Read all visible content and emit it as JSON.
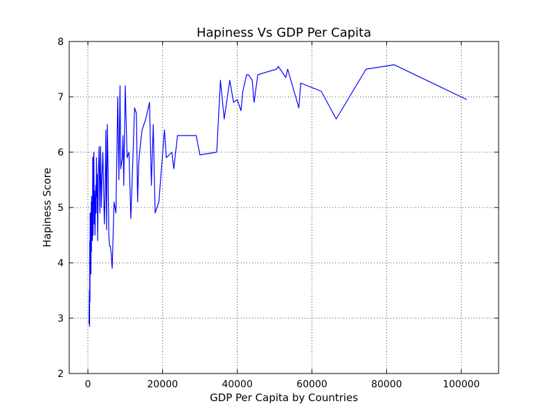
{
  "chart_data": {
    "type": "line",
    "title": "Hapiness Vs GDP Per Capita",
    "xlabel": "GDP Per Capita by Countries",
    "ylabel": "Hapiness Score",
    "xlim": [
      -5000,
      110000
    ],
    "ylim": [
      2,
      8
    ],
    "x_ticks": [
      0,
      20000,
      40000,
      60000,
      80000,
      100000
    ],
    "y_ticks": [
      2,
      3,
      4,
      5,
      6,
      7,
      8
    ],
    "grid": true,
    "grid_style": "dotted",
    "legend": "none",
    "series": [
      {
        "color": "#0000ff",
        "x": [
          300,
          400,
          450,
          500,
          550,
          600,
          650,
          700,
          750,
          800,
          850,
          900,
          950,
          1000,
          1100,
          1200,
          1300,
          1400,
          1500,
          1600,
          1700,
          1800,
          1900,
          2000,
          2100,
          2200,
          2300,
          2400,
          2500,
          2600,
          2800,
          3000,
          3200,
          3400,
          3600,
          3800,
          4000,
          4200,
          4400,
          4600,
          4800,
          5000,
          5200,
          5400,
          5600,
          5800,
          6000,
          6200,
          6500,
          7000,
          7500,
          8000,
          8300,
          8600,
          8800,
          9000,
          9200,
          9400,
          9600,
          10000,
          10500,
          11000,
          11500,
          12500,
          13000,
          13300,
          13600,
          14000,
          14500,
          15500,
          16500,
          17000,
          17500,
          18000,
          19000,
          20500,
          21000,
          22500,
          23000,
          24000,
          26000,
          28000,
          29000,
          30000,
          34500,
          35500,
          36500,
          38000,
          39000,
          40000,
          41000,
          41500,
          42500,
          43000,
          44000,
          44500,
          45500,
          50500,
          51000,
          53000,
          53500,
          56500,
          57000,
          62500,
          66500,
          74500,
          82000,
          101500
        ],
        "y": [
          2.9,
          3.5,
          2.85,
          4.4,
          3.3,
          4.9,
          3.8,
          4.3,
          4.9,
          3.8,
          4.6,
          5.1,
          4.2,
          5.2,
          4.8,
          4.4,
          5.9,
          4.5,
          5.9,
          6.0,
          4.7,
          5.3,
          4.5,
          5.0,
          5.4,
          4.9,
          5.9,
          5.2,
          5.6,
          4.4,
          5.6,
          6.1,
          4.9,
          6.1,
          5.0,
          5.6,
          6.0,
          5.4,
          4.7,
          5.2,
          6.4,
          4.6,
          6.5,
          5.7,
          4.5,
          4.3,
          4.3,
          4.2,
          3.9,
          5.1,
          4.9,
          7.0,
          5.5,
          7.2,
          5.7,
          5.8,
          5.9,
          6.3,
          5.4,
          7.2,
          5.9,
          6.0,
          4.8,
          6.8,
          6.7,
          5.1,
          5.8,
          6.1,
          6.4,
          6.6,
          6.9,
          5.4,
          6.5,
          4.9,
          5.1,
          6.4,
          5.9,
          6.0,
          5.7,
          6.3,
          6.3,
          6.3,
          6.3,
          5.95,
          6.0,
          7.3,
          6.6,
          7.3,
          6.9,
          6.95,
          6.75,
          7.1,
          7.4,
          7.4,
          7.3,
          6.9,
          7.4,
          7.5,
          7.55,
          7.35,
          7.5,
          6.8,
          7.25,
          7.1,
          6.6,
          7.5,
          7.58,
          6.95
        ]
      }
    ]
  }
}
